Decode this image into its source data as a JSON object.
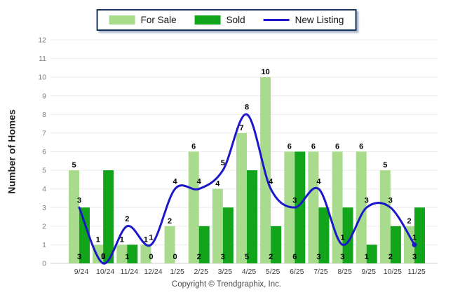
{
  "chart_data": {
    "type": "bar+line",
    "title": "",
    "categories": [
      "9/24",
      "10/24",
      "11/24",
      "12/24",
      "1/25",
      "2/25",
      "3/25",
      "4/25",
      "5/25",
      "6/25",
      "7/25",
      "8/25",
      "9/25",
      "10/25",
      "11/25"
    ],
    "series": [
      {
        "name": "For Sale",
        "type": "bar",
        "color": "#a8dc8c",
        "values": [
          5,
          1,
          1,
          1,
          2,
          6,
          4,
          7,
          10,
          6,
          6,
          6,
          6,
          5,
          2
        ],
        "label_position": "above-bar"
      },
      {
        "name": "Sold",
        "type": "bar",
        "color": "#12a41a",
        "values": [
          3,
          5,
          1,
          0,
          0,
          2,
          3,
          5,
          2,
          6,
          3,
          3,
          1,
          2,
          3
        ],
        "label_position": "bottom-of-bar"
      },
      {
        "name": "New Listing",
        "type": "line",
        "color": "#1c18c9",
        "values": [
          3,
          0,
          2,
          1,
          4,
          4,
          5,
          8,
          4,
          3,
          4,
          1,
          3,
          3,
          1
        ],
        "label_position": "above-point"
      }
    ],
    "ylabel": "Number of Homes",
    "xlabel": "",
    "ylim": [
      0,
      12
    ],
    "yticks": [
      0,
      1,
      2,
      3,
      4,
      5,
      6,
      7,
      8,
      9,
      10,
      11,
      12
    ],
    "grid": "horizontal",
    "legend_position": "top-center",
    "value_labels_shown": true
  },
  "colors": {
    "grid_line": "#ececec",
    "axis_line": "#cfcfcf",
    "tick_text": "#808080",
    "category_text": "#3d3d3d",
    "value_text": "#000000",
    "legend_border": "#16365c"
  },
  "footer": {
    "copyright": "Copyright © Trendgraphix, Inc."
  }
}
